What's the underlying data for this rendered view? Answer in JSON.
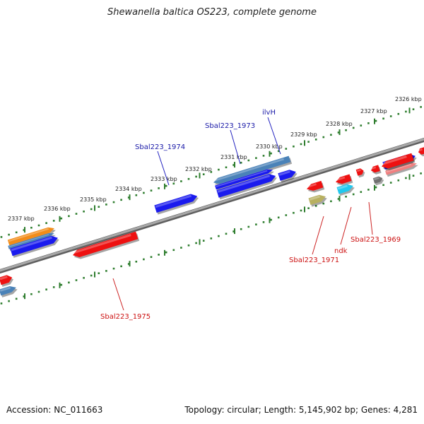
{
  "title": "Shewanella baltica OS223, complete genome",
  "footer": {
    "accession": "Accession: NC_011663",
    "topology": "Topology: circular; Length: 5,145,902 bp; Genes: 4,281"
  },
  "colors": {
    "backbone": "#8a8a8a",
    "ruler_dots": "#2e7d2e",
    "gene_red": "#ee1111",
    "gene_blue": "#1a1aee",
    "gene_steel": "#4a82b8",
    "gene_orange": "#f28c18",
    "gene_cyan": "#22c8ee",
    "gene_olive": "#b8b060",
    "gene_gray": "#707070",
    "gene_salmon": "#f08080",
    "label_blue": "#1a1aa8",
    "label_red": "#cc1111"
  },
  "scale_labels": [
    "2337 kbp",
    "2336 kbp",
    "2335 kbp",
    "2334 kbp",
    "2333 kbp",
    "2332 kbp",
    "2331 kbp",
    "2330 kbp",
    "2329 kbp",
    "2328 kbp",
    "2327 kbp",
    "2326 kbp"
  ],
  "gene_labels": {
    "top": [
      "Sbal223_1974",
      "Sbal223_1973",
      "ilvH"
    ],
    "bottom": [
      "Sbal223_1975",
      "Sbal223_1971",
      "ndk",
      "Sbal223_1969"
    ]
  }
}
